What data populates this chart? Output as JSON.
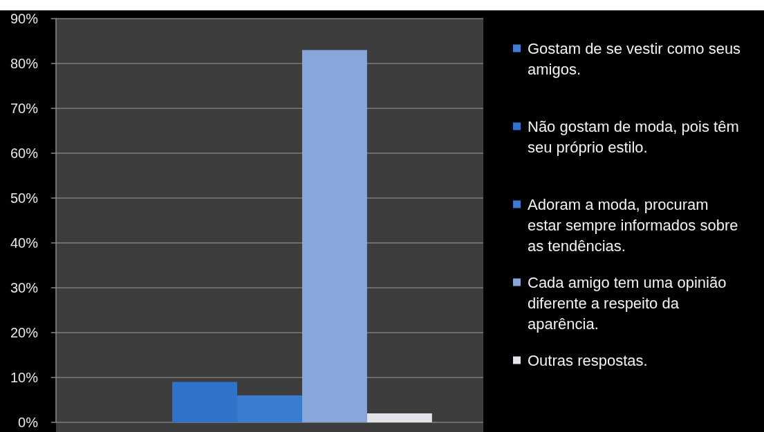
{
  "chart_data": {
    "type": "bar",
    "categories": [
      null
    ],
    "series": [
      {
        "name": "Gostam de se vestir como seus amigos.",
        "color": "#3f80d4",
        "values": [
          0
        ]
      },
      {
        "name": "Não gostam de moda, pois têm seu próprio estilo.",
        "color": "#2f73ca",
        "values": [
          9
        ]
      },
      {
        "name": "Adoram a moda, procuram estar sempre informados sobre as tendências.",
        "color": "#3a7cd0",
        "values": [
          6
        ]
      },
      {
        "name": "Cada amigo tem uma opinião diferente a respeito da aparência.",
        "color": "#88a6da",
        "values": [
          83
        ]
      },
      {
        "name": "Outras respostas.",
        "color": "#e2e4ec",
        "values": [
          2
        ]
      }
    ],
    "ylim": [
      0,
      90
    ],
    "yticks": [
      {
        "value": 0,
        "label": "0%"
      },
      {
        "value": 10,
        "label": "10%"
      },
      {
        "value": 20,
        "label": "20%"
      },
      {
        "value": 30,
        "label": "30%"
      },
      {
        "value": 40,
        "label": "40%"
      },
      {
        "value": 50,
        "label": "50%"
      },
      {
        "value": 60,
        "label": "60%"
      },
      {
        "value": 70,
        "label": "70%"
      },
      {
        "value": 80,
        "label": "80%"
      },
      {
        "value": 90,
        "label": "90%"
      }
    ],
    "grid": "y",
    "legend": "right",
    "tick_labels": "y"
  }
}
